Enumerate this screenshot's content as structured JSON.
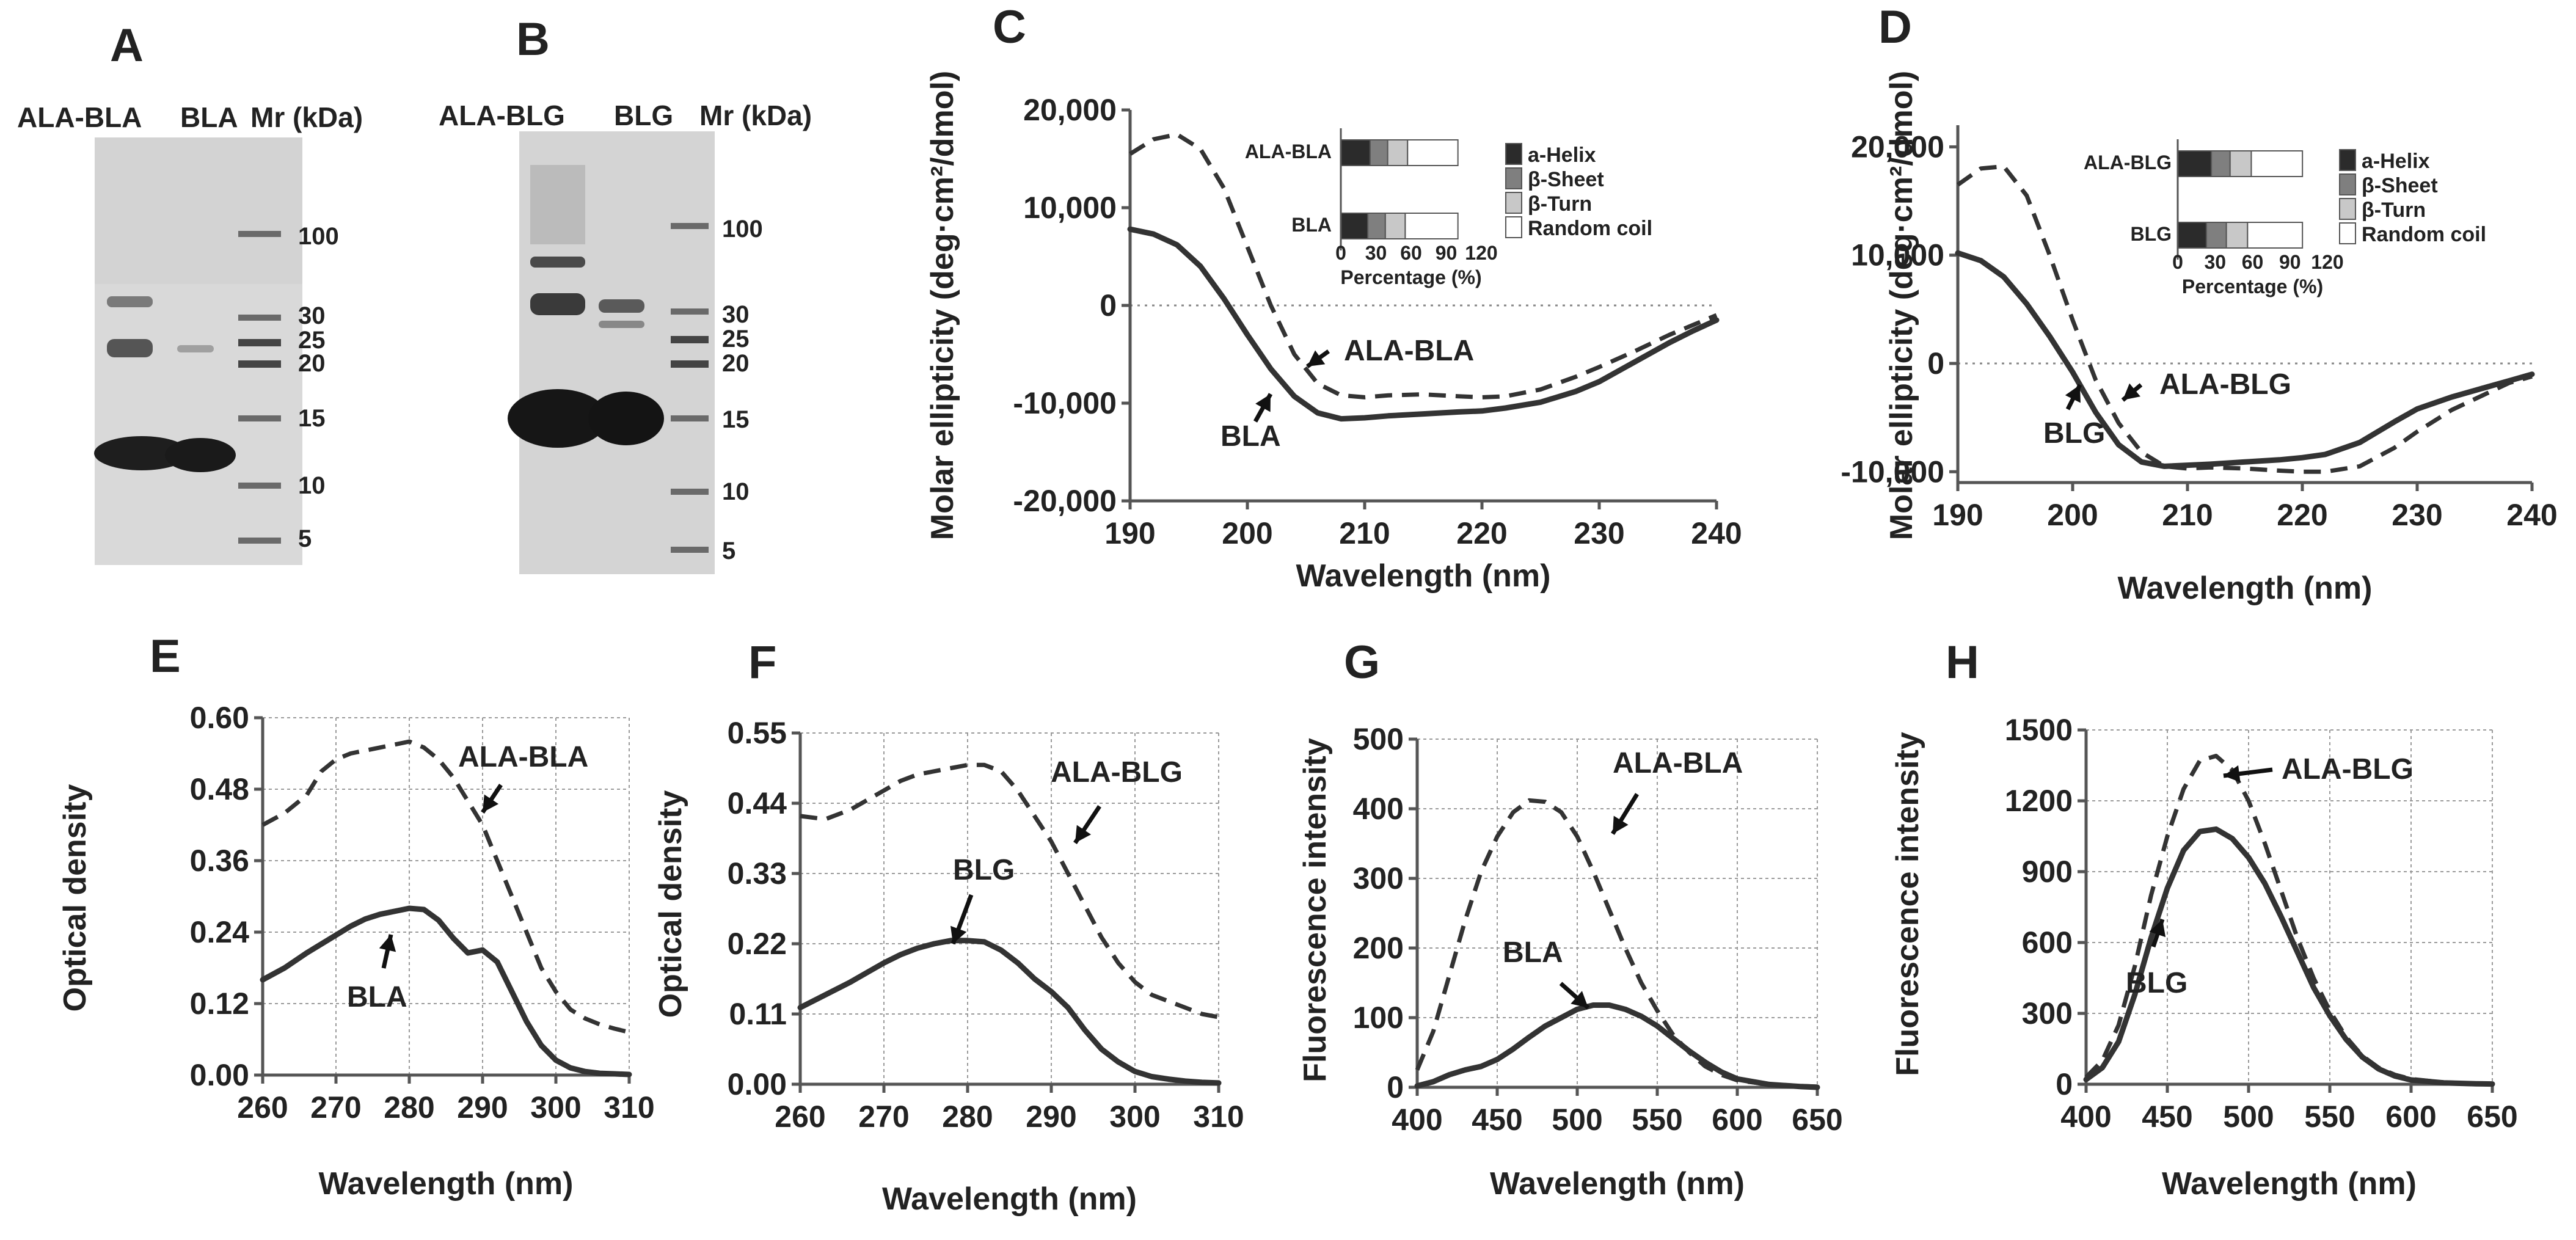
{
  "colors": {
    "dark": "#333333",
    "seg1": "#2b2b2b",
    "seg2": "#7f7f7f",
    "seg3": "#c8c8c8",
    "seg4": "#ffffff",
    "gel_bg": "#d6d6d6"
  },
  "panelA": {
    "letter": "A",
    "lanes": [
      "ALA-BLA",
      "BLA"
    ],
    "mr_header": "Mr (kDa)",
    "markers": [
      "100",
      "30",
      "25",
      "20",
      "15",
      "10",
      "5"
    ]
  },
  "panelB": {
    "letter": "B",
    "lanes": [
      "ALA-BLG",
      "BLG"
    ],
    "mr_header": "Mr (kDa)",
    "markers": [
      "100",
      "30",
      "25",
      "20",
      "15",
      "10",
      "5"
    ]
  },
  "chart_data": [
    {
      "id": "C",
      "letter": "C",
      "type": "line",
      "xlabel": "Wavelength (nm)",
      "ylabel": "Molar ellipticity (deg·cm²/dmol)",
      "xlim": [
        190,
        240
      ],
      "ylim": [
        -20000,
        20000
      ],
      "xticks": [
        "190",
        "200",
        "210",
        "220",
        "230",
        "240"
      ],
      "yticks": [
        "-20,000",
        "-10,000",
        "0",
        "10,000",
        "20,000"
      ],
      "series": [
        {
          "name": "ALA-BLA",
          "style": "dashed",
          "x": [
            190,
            192,
            194,
            196,
            198,
            200,
            202,
            204,
            206,
            208,
            210,
            212,
            215,
            218,
            220,
            222,
            225,
            228,
            230,
            233,
            236,
            238,
            240
          ],
          "y": [
            15500,
            17000,
            17500,
            16000,
            12000,
            6000,
            0,
            -5000,
            -8000,
            -9200,
            -9400,
            -9200,
            -9100,
            -9300,
            -9400,
            -9300,
            -8600,
            -7300,
            -6300,
            -4700,
            -3000,
            -2000,
            -1000
          ]
        },
        {
          "name": "BLA",
          "style": "solid",
          "x": [
            190,
            192,
            194,
            196,
            198,
            200,
            202,
            204,
            206,
            208,
            210,
            212,
            215,
            218,
            220,
            222,
            225,
            228,
            230,
            233,
            236,
            238,
            240
          ],
          "y": [
            7800,
            7300,
            6200,
            4000,
            700,
            -3000,
            -6500,
            -9300,
            -11000,
            -11600,
            -11500,
            -11300,
            -11100,
            -10900,
            -10800,
            -10500,
            -9900,
            -8800,
            -7800,
            -5800,
            -3800,
            -2600,
            -1500
          ]
        }
      ],
      "annotations": [
        "ALA-BLA",
        "BLA"
      ],
      "inset": {
        "xlabel": "Percentage (%)",
        "xticks": [
          "0",
          "30",
          "60",
          "90",
          "120"
        ],
        "categories": [
          "ALA-BLA",
          "BLA"
        ],
        "components": [
          "a-Helix",
          "β-Sheet",
          "β-Turn",
          "Random coil"
        ],
        "values": [
          [
            25,
            15,
            17,
            43
          ],
          [
            23,
            15,
            17,
            45
          ]
        ]
      }
    },
    {
      "id": "D",
      "letter": "D",
      "type": "line",
      "xlabel": "Wavelength (nm)",
      "ylabel": "Molar ellipticity (deg·cm²/dmol)",
      "xlim": [
        190,
        240
      ],
      "ylim": [
        -11000,
        22000
      ],
      "xticks": [
        "190",
        "200",
        "210",
        "220",
        "230",
        "240"
      ],
      "yticks": [
        "-10,000",
        "0",
        "10,000",
        "20,000"
      ],
      "series": [
        {
          "name": "ALA-BLG",
          "style": "dashed",
          "x": [
            190,
            192,
            194,
            196,
            198,
            200,
            202,
            204,
            206,
            208,
            210,
            212,
            215,
            218,
            220,
            222,
            225,
            228,
            230,
            233,
            236,
            238,
            240
          ],
          "y": [
            16500,
            18000,
            18200,
            15500,
            10000,
            4000,
            -1500,
            -5500,
            -8200,
            -9500,
            -9700,
            -9600,
            -9700,
            -9900,
            -10000,
            -10000,
            -9500,
            -7800,
            -6300,
            -4300,
            -2800,
            -1800,
            -1200
          ]
        },
        {
          "name": "BLG",
          "style": "solid",
          "x": [
            190,
            192,
            194,
            196,
            198,
            200,
            202,
            204,
            206,
            208,
            210,
            212,
            215,
            218,
            220,
            222,
            225,
            228,
            230,
            233,
            236,
            238,
            240
          ],
          "y": [
            10200,
            9500,
            8000,
            5500,
            2500,
            -800,
            -4500,
            -7500,
            -9100,
            -9500,
            -9400,
            -9300,
            -9100,
            -8900,
            -8700,
            -8400,
            -7300,
            -5400,
            -4200,
            -3100,
            -2200,
            -1600,
            -1000
          ]
        }
      ],
      "annotations": [
        "ALA-BLG",
        "BLG"
      ],
      "inset": {
        "xlabel": "Percentage (%)",
        "xticks": [
          "0",
          "30",
          "60",
          "90",
          "120"
        ],
        "categories": [
          "ALA-BLG",
          "BLG"
        ],
        "components": [
          "a-Helix",
          "β-Sheet",
          "β-Turn",
          "Random coil"
        ],
        "values": [
          [
            27,
            15,
            17,
            41
          ],
          [
            23,
            16,
            17,
            44
          ]
        ]
      }
    },
    {
      "id": "E",
      "letter": "E",
      "type": "line",
      "xlabel": "Wavelength (nm)",
      "ylabel": "Optical density",
      "xlim": [
        260,
        310
      ],
      "ylim": [
        0,
        0.6
      ],
      "xticks": [
        "260",
        "270",
        "280",
        "290",
        "300",
        "310"
      ],
      "yticks": [
        "0.00",
        "0.12",
        "0.24",
        "0.36",
        "0.48",
        "0.60"
      ],
      "series": [
        {
          "name": "ALA-BLA",
          "style": "dashed",
          "x": [
            260,
            263,
            266,
            268,
            270,
            272,
            274,
            276,
            278,
            280,
            282,
            284,
            286,
            288,
            290,
            292,
            294,
            296,
            298,
            300,
            302,
            304,
            306,
            308,
            310
          ],
          "y": [
            0.42,
            0.44,
            0.47,
            0.51,
            0.53,
            0.54,
            0.545,
            0.55,
            0.555,
            0.56,
            0.55,
            0.53,
            0.5,
            0.46,
            0.42,
            0.36,
            0.3,
            0.24,
            0.18,
            0.14,
            0.11,
            0.095,
            0.085,
            0.078,
            0.072
          ]
        },
        {
          "name": "BLA",
          "style": "solid",
          "x": [
            260,
            263,
            266,
            268,
            270,
            272,
            274,
            276,
            278,
            280,
            282,
            284,
            286,
            288,
            290,
            292,
            294,
            296,
            298,
            300,
            302,
            304,
            306,
            308,
            310
          ],
          "y": [
            0.16,
            0.18,
            0.205,
            0.22,
            0.235,
            0.25,
            0.262,
            0.27,
            0.275,
            0.28,
            0.278,
            0.26,
            0.23,
            0.205,
            0.21,
            0.19,
            0.14,
            0.09,
            0.05,
            0.025,
            0.012,
            0.006,
            0.003,
            0.002,
            0.001
          ]
        }
      ],
      "annotations": [
        "ALA-BLA",
        "BLA"
      ]
    },
    {
      "id": "F",
      "letter": "F",
      "type": "line",
      "xlabel": "Wavelength (nm)",
      "ylabel": "Optical density",
      "xlim": [
        260,
        310
      ],
      "ylim": [
        0,
        0.55
      ],
      "xticks": [
        "260",
        "270",
        "280",
        "290",
        "300",
        "310"
      ],
      "yticks": [
        "0.00",
        "0.11",
        "0.22",
        "0.33",
        "0.44",
        "0.55"
      ],
      "series": [
        {
          "name": "ALA-BLG",
          "style": "dashed",
          "x": [
            260,
            263,
            266,
            268,
            270,
            272,
            274,
            276,
            278,
            280,
            282,
            284,
            286,
            288,
            290,
            292,
            294,
            296,
            298,
            300,
            302,
            304,
            306,
            308,
            310
          ],
          "y": [
            0.42,
            0.415,
            0.43,
            0.445,
            0.46,
            0.475,
            0.485,
            0.49,
            0.495,
            0.5,
            0.5,
            0.49,
            0.46,
            0.42,
            0.38,
            0.33,
            0.28,
            0.23,
            0.19,
            0.16,
            0.14,
            0.13,
            0.12,
            0.11,
            0.105
          ]
        },
        {
          "name": "BLG",
          "style": "solid",
          "x": [
            260,
            263,
            266,
            268,
            270,
            272,
            274,
            276,
            278,
            280,
            282,
            284,
            286,
            288,
            290,
            292,
            294,
            296,
            298,
            300,
            302,
            304,
            306,
            308,
            310
          ],
          "y": [
            0.12,
            0.14,
            0.16,
            0.175,
            0.19,
            0.203,
            0.213,
            0.22,
            0.225,
            0.225,
            0.223,
            0.21,
            0.19,
            0.165,
            0.145,
            0.12,
            0.085,
            0.055,
            0.035,
            0.02,
            0.012,
            0.008,
            0.005,
            0.003,
            0.002
          ]
        }
      ],
      "annotations": [
        "ALA-BLG",
        "BLG"
      ]
    },
    {
      "id": "G",
      "letter": "G",
      "type": "line",
      "xlabel": "Wavelength (nm)",
      "ylabel": "Fluorescence  intensity",
      "xlim": [
        400,
        650
      ],
      "ylim": [
        0,
        500
      ],
      "xticks": [
        "400",
        "450",
        "500",
        "550",
        "600",
        "650"
      ],
      "yticks": [
        "0",
        "100",
        "200",
        "300",
        "400",
        "500"
      ],
      "series": [
        {
          "name": "ALA-BLA",
          "style": "dashed",
          "x": [
            400,
            410,
            420,
            430,
            440,
            450,
            460,
            470,
            480,
            490,
            500,
            510,
            520,
            530,
            540,
            550,
            560,
            570,
            580,
            590,
            600,
            620,
            640,
            650
          ],
          "y": [
            25,
            80,
            160,
            240,
            310,
            360,
            395,
            412,
            410,
            395,
            360,
            310,
            255,
            200,
            150,
            110,
            75,
            50,
            30,
            18,
            10,
            4,
            2,
            1
          ]
        },
        {
          "name": "BLA",
          "style": "solid",
          "x": [
            400,
            410,
            420,
            430,
            440,
            450,
            460,
            470,
            480,
            490,
            500,
            510,
            520,
            530,
            540,
            550,
            560,
            570,
            580,
            590,
            600,
            620,
            640,
            650
          ],
          "y": [
            2,
            8,
            18,
            25,
            30,
            40,
            55,
            72,
            88,
            100,
            112,
            118,
            118,
            112,
            102,
            88,
            70,
            52,
            36,
            22,
            12,
            4,
            1,
            0
          ]
        }
      ],
      "annotations": [
        "ALA-BLA",
        "BLA"
      ]
    },
    {
      "id": "H",
      "letter": "H",
      "type": "line",
      "xlabel": "Wavelength (nm)",
      "ylabel": "Fluorescence  intensity",
      "xlim": [
        400,
        650
      ],
      "ylim": [
        0,
        1500
      ],
      "xticks": [
        "400",
        "450",
        "500",
        "550",
        "600",
        "650"
      ],
      "yticks": [
        "0",
        "300",
        "600",
        "900",
        "1200",
        "1500"
      ],
      "series": [
        {
          "name": "ALA-BLG",
          "style": "dashed",
          "x": [
            400,
            410,
            420,
            430,
            440,
            450,
            460,
            470,
            480,
            490,
            500,
            510,
            520,
            530,
            540,
            550,
            560,
            570,
            580,
            590,
            600,
            620,
            640,
            650
          ],
          "y": [
            30,
            100,
            250,
            500,
            800,
            1050,
            1250,
            1370,
            1390,
            1330,
            1200,
            1020,
            820,
            620,
            450,
            310,
            200,
            120,
            70,
            40,
            22,
            8,
            3,
            1
          ]
        },
        {
          "name": "BLG",
          "style": "solid",
          "x": [
            400,
            410,
            420,
            430,
            440,
            450,
            460,
            470,
            480,
            490,
            500,
            510,
            520,
            530,
            540,
            550,
            560,
            570,
            580,
            590,
            600,
            620,
            640,
            650
          ],
          "y": [
            20,
            70,
            180,
            380,
            620,
            830,
            990,
            1070,
            1080,
            1040,
            960,
            850,
            710,
            560,
            410,
            290,
            190,
            115,
            65,
            35,
            18,
            6,
            2,
            1
          ]
        }
      ],
      "annotations": [
        "ALA-BLG",
        "BLG"
      ]
    }
  ]
}
